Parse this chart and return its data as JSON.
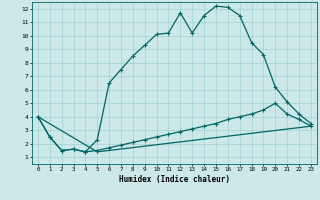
{
  "xlabel": "Humidex (Indice chaleur)",
  "bg_color": "#cce8e8",
  "line_color": "#006666",
  "grid_color": "#99cccc",
  "xlim": [
    -0.5,
    23.5
  ],
  "ylim": [
    0.5,
    12.5
  ],
  "xticks": [
    0,
    1,
    2,
    3,
    4,
    5,
    6,
    7,
    8,
    9,
    10,
    11,
    12,
    13,
    14,
    15,
    16,
    17,
    18,
    19,
    20,
    21,
    22,
    23
  ],
  "yticks": [
    1,
    2,
    3,
    4,
    5,
    6,
    7,
    8,
    9,
    10,
    11,
    12
  ],
  "curve1_x": [
    0,
    1,
    2,
    3,
    4,
    5,
    6,
    7,
    8,
    9,
    10,
    11,
    12,
    13,
    14,
    15,
    16,
    17,
    18,
    19,
    20,
    21,
    22,
    23
  ],
  "curve1_y": [
    4.0,
    2.5,
    1.5,
    1.6,
    1.4,
    2.3,
    6.5,
    7.5,
    8.5,
    9.3,
    10.1,
    10.2,
    11.7,
    10.2,
    11.5,
    12.2,
    12.1,
    11.5,
    9.5,
    8.6,
    6.2,
    5.1,
    4.2,
    3.5
  ],
  "curve2_x": [
    0,
    1,
    2,
    3,
    4,
    5,
    6,
    7,
    8,
    9,
    10,
    11,
    12,
    13,
    14,
    15,
    16,
    17,
    18,
    19,
    20,
    21,
    22,
    23
  ],
  "curve2_y": [
    4.0,
    2.5,
    1.5,
    1.6,
    1.4,
    1.5,
    1.7,
    1.9,
    2.1,
    2.3,
    2.5,
    2.7,
    2.9,
    3.1,
    3.3,
    3.5,
    3.8,
    4.0,
    4.2,
    4.5,
    5.0,
    4.2,
    3.8,
    3.3
  ],
  "curve3_x": [
    0,
    5,
    23
  ],
  "curve3_y": [
    4.0,
    1.4,
    3.3
  ],
  "lw": 0.9,
  "ms": 2.5
}
